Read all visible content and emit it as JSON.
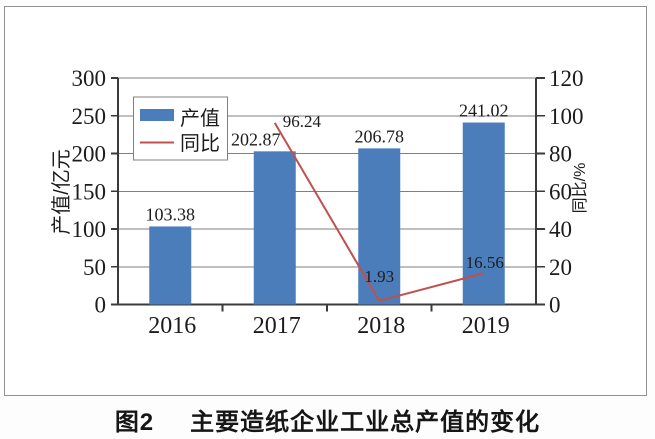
{
  "figure": {
    "caption_prefix": "图2",
    "caption_title": "主要造纸企业工业总产值的变化"
  },
  "chart_data": {
    "type": "bar+line combo",
    "categories": [
      "2016",
      "2017",
      "2018",
      "2019"
    ],
    "series": [
      {
        "name": "产值",
        "type": "bar",
        "axis": "left",
        "values": [
          103.38,
          202.87,
          206.78,
          241.02
        ],
        "labels": [
          "103.38",
          "202.87",
          "206.78",
          "241.02"
        ],
        "color": "#4c7dbb"
      },
      {
        "name": "同比",
        "type": "line",
        "axis": "right",
        "values": [
          null,
          96.24,
          1.93,
          16.56
        ],
        "labels": [
          "",
          "96.24",
          "1.93",
          "16.56"
        ],
        "color": "#c0504d"
      }
    ],
    "left_axis": {
      "title": "产值/亿元",
      "min": 0,
      "max": 300,
      "step": 50,
      "ticks": [
        "0",
        "50",
        "100",
        "150",
        "200",
        "250",
        "300"
      ]
    },
    "right_axis": {
      "title": "同比/%",
      "min": 0,
      "max": 120,
      "step": 20,
      "ticks": [
        "0",
        "20",
        "40",
        "60",
        "80",
        "100",
        "120"
      ]
    },
    "legend": {
      "position": "top-left-inside",
      "items": [
        "产值",
        "同比"
      ]
    },
    "grid": true,
    "title": "图2 主要造纸企业工业总产值的变化"
  },
  "colors": {
    "bar": "#4c7dbb",
    "line": "#c0504d",
    "annotation_red": "#c0504d",
    "grid": "#7f7f7f",
    "axis": "#3a3a3a",
    "text": "#1c1c1c",
    "legend_border": "#808080",
    "figure_border": "#919191",
    "background": "#ffffff"
  }
}
